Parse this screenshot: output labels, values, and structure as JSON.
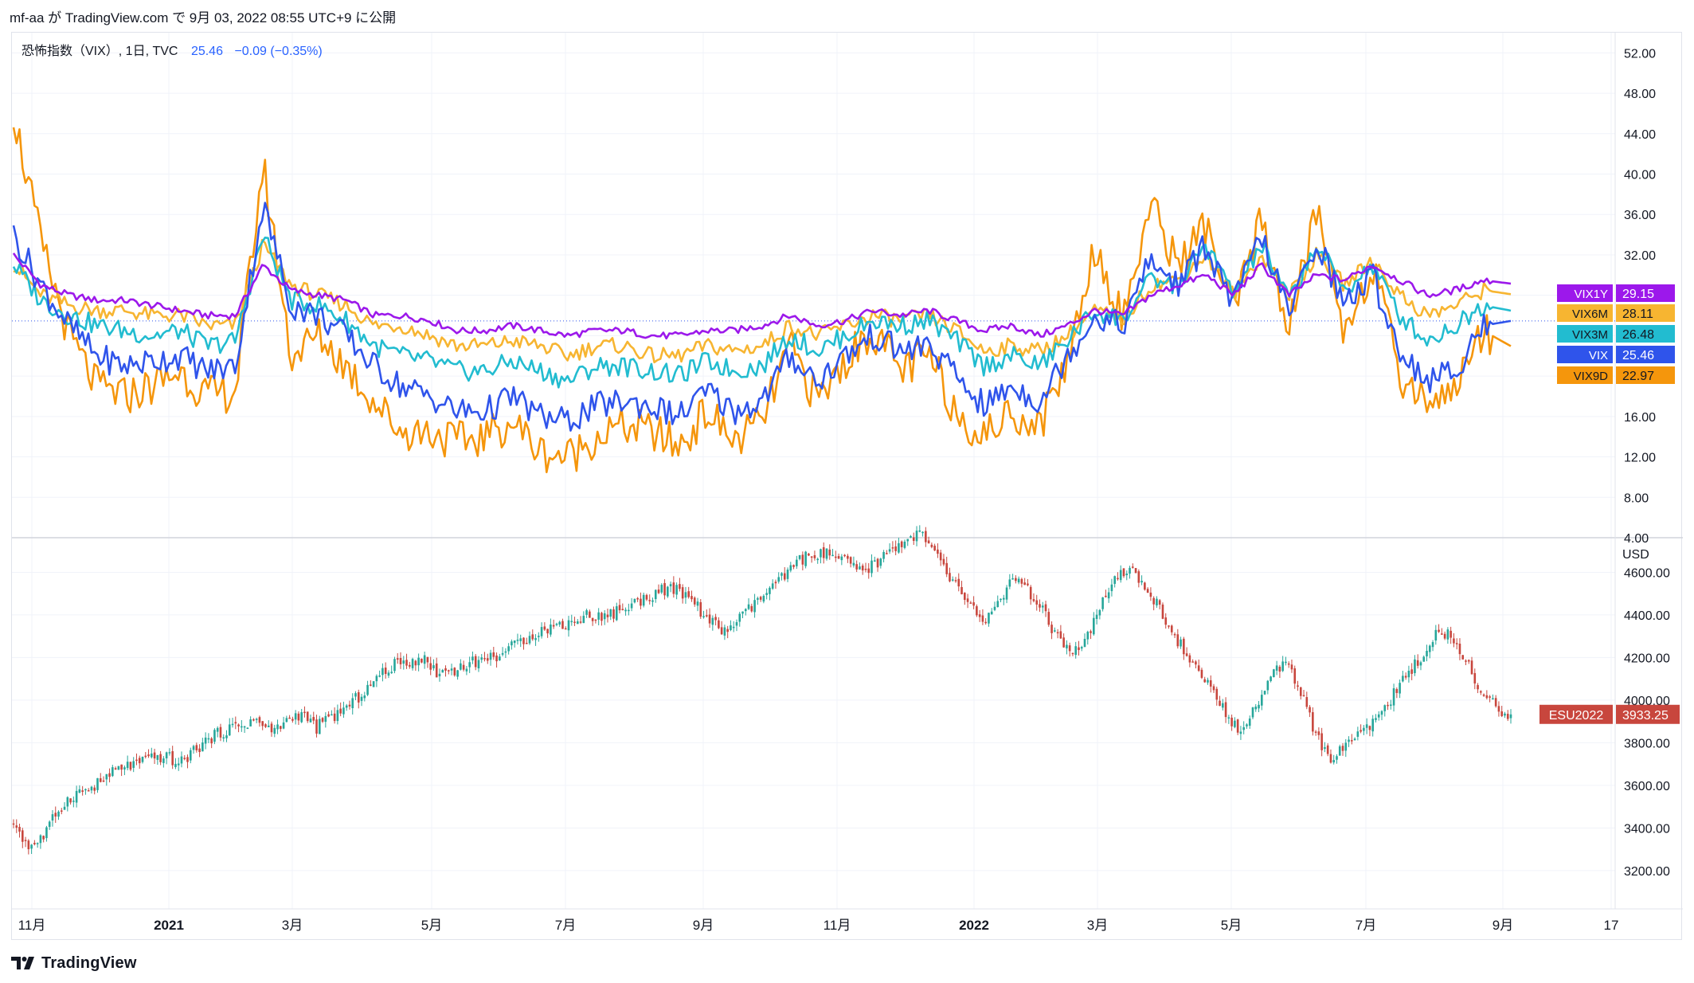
{
  "header": {
    "publication_line": "mf-aa が TradingView.com で 9月 03, 2022 08:55 UTC+9 に公開"
  },
  "legend": {
    "symbol_text": "恐怖指数（VIX）, 1日, TVC",
    "last_value": "25.46",
    "change": "−0.09 (−0.35%)"
  },
  "footer": {
    "brand": "TradingView"
  },
  "colors": {
    "vix": "#2f54eb",
    "vix9d": "#f5960c",
    "vix3m": "#22bcd0",
    "vix6m": "#f7b531",
    "vix1y": "#9c18eb",
    "up": "#26a69a",
    "down": "#c8463d",
    "grid": "#f0f3fa",
    "axis_text": "#131722",
    "legend_value": "#2962ff"
  },
  "chart_data": [
    {
      "type": "line",
      "title": "恐怖指数（VIX）, 1日, TVC",
      "x_axis_ticks": [
        "11月",
        "2021",
        "3月",
        "5月",
        "7月",
        "9月",
        "11月",
        "2022",
        "3月",
        "5月",
        "7月",
        "9月",
        "17"
      ],
      "x_range": [
        "2020-10",
        "2022-09"
      ],
      "y_ticks": [
        4,
        8,
        12,
        16,
        20,
        24,
        28,
        32,
        36,
        40,
        44,
        48,
        52
      ],
      "y_tick_labels": [
        "4.00",
        "8.00",
        "12.00",
        "16.00",
        "20.00",
        "24.00",
        "28.00",
        "32.00",
        "36.00",
        "40.00",
        "44.00",
        "48.00",
        "52.00"
      ],
      "ylim": [
        4,
        54
      ],
      "grid": true,
      "price_line": 25.46,
      "series": [
        {
          "name": "VIX1Y",
          "label": "29.15",
          "last": 29.15,
          "colorKey": "vix1y",
          "values": [
            32,
            29,
            28,
            27.5,
            27.5,
            27,
            26.5,
            26,
            26,
            31,
            28.5,
            28,
            27.5,
            26,
            26,
            25.5,
            24.5,
            24.5,
            25,
            24.5,
            24,
            24.5,
            24.5,
            24,
            24,
            24.5,
            24.5,
            25,
            26,
            25,
            25.5,
            26.5,
            26,
            26.5,
            25.5,
            24.5,
            25,
            24,
            25,
            26.5,
            26,
            28,
            29,
            30,
            28,
            31,
            28,
            30,
            29.5,
            31,
            29.5,
            28,
            28.5,
            29.5,
            29.15
          ]
        },
        {
          "name": "VIX6M",
          "label": "28.11",
          "last": 28.11,
          "colorKey": "vix6m",
          "values": [
            31,
            28,
            27,
            26.5,
            26.5,
            26,
            26,
            25,
            25,
            33,
            29,
            28,
            27,
            25,
            25,
            24,
            23,
            23,
            23.5,
            23,
            22,
            23,
            23,
            22,
            22,
            23,
            22.5,
            23,
            25,
            24,
            25,
            26,
            25.5,
            26,
            24.5,
            22.5,
            23,
            22.5,
            24,
            26.5,
            25.5,
            29,
            29.5,
            32,
            28,
            32,
            28,
            32,
            29,
            31.5,
            28,
            26,
            27,
            28.5,
            28.11
          ]
        },
        {
          "name": "VIX3M",
          "label": "26.48",
          "last": 26.48,
          "colorKey": "vix3m",
          "values": [
            31,
            27.5,
            26,
            25,
            24.5,
            24,
            24.5,
            23,
            23.5,
            34,
            27.5,
            27,
            25.5,
            23,
            22,
            21.5,
            20.5,
            20.5,
            21.5,
            20.5,
            19.5,
            21,
            21,
            20.5,
            20,
            21.5,
            20.5,
            21,
            24,
            22.5,
            24,
            25.5,
            25,
            25.5,
            23.5,
            21,
            22,
            21,
            23.5,
            26.5,
            25.5,
            29.5,
            29,
            33,
            28,
            33,
            27.5,
            33,
            28.5,
            31,
            26,
            23.5,
            25,
            27,
            26.48
          ]
        },
        {
          "name": "VIX",
          "label": "25.46",
          "last": 25.46,
          "colorKey": "vix",
          "values": [
            34,
            29,
            25,
            22,
            21,
            21.5,
            22,
            20.5,
            21,
            37,
            27,
            26,
            24,
            21,
            19,
            18,
            16.5,
            16.5,
            18,
            16,
            15.5,
            17,
            17.5,
            17,
            16,
            18.5,
            16.5,
            17.5,
            22,
            19.5,
            22,
            24,
            22.5,
            23,
            20,
            17,
            19,
            17.5,
            22,
            26,
            25,
            31.5,
            29,
            33,
            27,
            34,
            26,
            33.5,
            27,
            30,
            22.5,
            19.5,
            20.5,
            25,
            25.46
          ]
        },
        {
          "name": "VIX9D",
          "label": "22.97",
          "last": 22.97,
          "colorKey": "vix9d",
          "values": [
            46,
            33,
            24,
            19,
            18,
            19,
            20.5,
            18,
            18.5,
            41,
            22,
            24,
            21,
            17.5,
            14.5,
            14.5,
            13.5,
            14,
            15.5,
            12.5,
            12,
            14,
            15,
            14.5,
            13,
            16.5,
            13.5,
            15.5,
            23,
            17.5,
            21.5,
            24.5,
            20.5,
            22,
            16.5,
            14,
            16.5,
            15,
            21.5,
            33,
            25.5,
            37,
            31,
            35,
            26,
            35.5,
            24.5,
            36.5,
            24.5,
            31,
            20,
            17.5,
            19,
            24.5,
            22.97
          ]
        }
      ]
    },
    {
      "type": "candlestick",
      "title": "ESU2022",
      "last_label": "ESU2022",
      "last_value": "3933.25",
      "y_unit_label": "USD",
      "y_ticks": [
        3200,
        3400,
        3600,
        3800,
        4000,
        4200,
        4400,
        4600
      ],
      "y_tick_labels": [
        "3200.00",
        "3400.00",
        "3600.00",
        "3800.00",
        "4000.00",
        "4200.00",
        "4400.00",
        "4600.00"
      ],
      "ylim": [
        3020,
        4740
      ],
      "grid": true,
      "close_path": [
        3430,
        3310,
        3360,
        3490,
        3560,
        3580,
        3630,
        3680,
        3700,
        3720,
        3740,
        3700,
        3770,
        3820,
        3860,
        3880,
        3910,
        3850,
        3900,
        3940,
        3870,
        3920,
        3960,
        4030,
        4100,
        4160,
        4180,
        4200,
        4130,
        4140,
        4170,
        4190,
        4210,
        4250,
        4300,
        4330,
        4350,
        4370,
        4400,
        4390,
        4420,
        4450,
        4490,
        4520,
        4510,
        4460,
        4370,
        4320,
        4380,
        4450,
        4520,
        4580,
        4660,
        4690,
        4680,
        4650,
        4600,
        4640,
        4700,
        4760,
        4780,
        4680,
        4560,
        4480,
        4360,
        4450,
        4560,
        4520,
        4420,
        4300,
        4200,
        4300,
        4450,
        4580,
        4600,
        4520,
        4400,
        4280,
        4150,
        4080,
        3950,
        3870,
        3950,
        4100,
        4170,
        4070,
        3850,
        3720,
        3780,
        3860,
        3900,
        4000,
        4100,
        4200,
        4300,
        4320,
        4200,
        4020,
        3970,
        3933
      ]
    }
  ]
}
